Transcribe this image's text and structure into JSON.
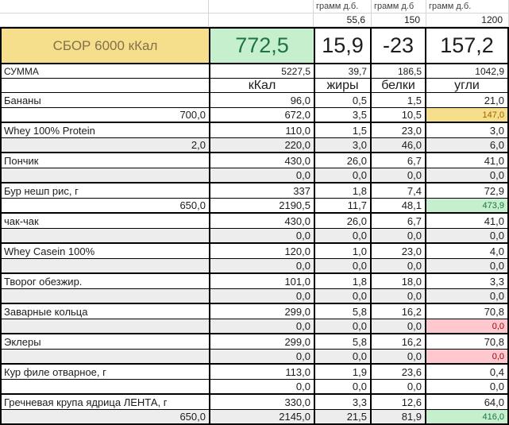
{
  "top": {
    "gram_headers": [
      "грамм д.б.",
      "грамм д.б",
      "грамм д.б."
    ],
    "gram_values": [
      "55,6",
      "150",
      "1200"
    ]
  },
  "summary": {
    "title": "СБОР 6000 кКал",
    "kcal": "772,5",
    "fat": "15,9",
    "protein": "-23",
    "carbs": "157,2"
  },
  "sum_row": {
    "label": "СУММА",
    "values": [
      "5227,5",
      "39,7",
      "186,5",
      "1042,9"
    ]
  },
  "columns": {
    "kcal": "кКал",
    "fat": "жиры",
    "protein": "белки",
    "carbs": "угли"
  },
  "products": [
    {
      "name": "Бананы",
      "vals": [
        "96,0",
        "0,5",
        "1,5",
        "21,0"
      ],
      "amount": "700,0",
      "totals": [
        "672,0",
        "3,5",
        "10,5",
        "147,0"
      ],
      "shaded": false,
      "highlight": "yellow"
    },
    {
      "name": "Whey 100% Protein",
      "vals": [
        "110,0",
        "1,5",
        "23,0",
        "3,0"
      ],
      "amount": "2,0",
      "totals": [
        "220,0",
        "3,0",
        "46,0",
        "6,0"
      ],
      "shaded": true,
      "highlight": null
    },
    {
      "name": "Пончик",
      "vals": [
        "430,0",
        "26,0",
        "6,7",
        "41,0"
      ],
      "amount": "",
      "totals": [
        "0,0",
        "0,0",
        "0,0",
        "0,0"
      ],
      "shaded": true,
      "highlight": null
    },
    {
      "name": "Бур нешп рис, г",
      "vals": [
        "337",
        "1,8",
        "7,4",
        "72,9"
      ],
      "amount": "650,0",
      "totals": [
        "2190,5",
        "11,7",
        "48,1",
        "473,9"
      ],
      "shaded": false,
      "highlight": "green"
    },
    {
      "name": "чак-чак",
      "vals": [
        "430,0",
        "26,0",
        "6,7",
        "41,0"
      ],
      "amount": "",
      "totals": [
        "0,0",
        "0,0",
        "0,0",
        "0,0"
      ],
      "shaded": true,
      "highlight": null
    },
    {
      "name": "Whey Casein 100%",
      "vals": [
        "120,0",
        "1,0",
        "23,0",
        "4,0"
      ],
      "amount": "",
      "totals": [
        "0,0",
        "0,0",
        "0,0",
        "0,0"
      ],
      "shaded": true,
      "highlight": null
    },
    {
      "name": "Творог обезжир.",
      "vals": [
        "101,0",
        "1,8",
        "18,0",
        "3,3"
      ],
      "amount": "",
      "totals": [
        "0,0",
        "0,0",
        "0,0",
        "0,0"
      ],
      "shaded": true,
      "highlight": null
    },
    {
      "name": "Заварные кольца",
      "vals": [
        "299,0",
        "5,8",
        "16,2",
        "70,8"
      ],
      "amount": "",
      "totals": [
        "0,0",
        "0,0",
        "0,0",
        "0,0"
      ],
      "shaded": true,
      "highlight": "red"
    },
    {
      "name": "Эклеры",
      "vals": [
        "299,0",
        "5,8",
        "16,2",
        "70,8"
      ],
      "amount": "",
      "totals": [
        "0,0",
        "0,0",
        "0,0",
        "0,0"
      ],
      "shaded": true,
      "highlight": "red"
    },
    {
      "name": "Кур филе отварное, г",
      "vals": [
        "113,0",
        "1,9",
        "23,6",
        "0,4"
      ],
      "amount": "",
      "totals": [
        "0,0",
        "0,0",
        "0,0",
        "0,0"
      ],
      "shaded": false,
      "highlight": null
    },
    {
      "name": "Гречневая крупа ядрица ЛЕНТА, г",
      "vals": [
        "330,0",
        "3,3",
        "12,6",
        "64,0"
      ],
      "amount": "650,0",
      "totals": [
        "2145,0",
        "21,5",
        "81,9",
        "416,0"
      ],
      "shaded": true,
      "highlight": "green"
    }
  ],
  "colors": {
    "title_bg": "#f5df8c",
    "title_text": "#82714a",
    "good_bg": "#c6efce",
    "good_text": "#1f7246",
    "bad_bg": "#ffc7ce",
    "bad_text": "#9c0006",
    "neutral_bg": "#f5df8c",
    "neutral_text": "#9c6500",
    "shaded_row": "#ededed",
    "border": "#000000"
  }
}
